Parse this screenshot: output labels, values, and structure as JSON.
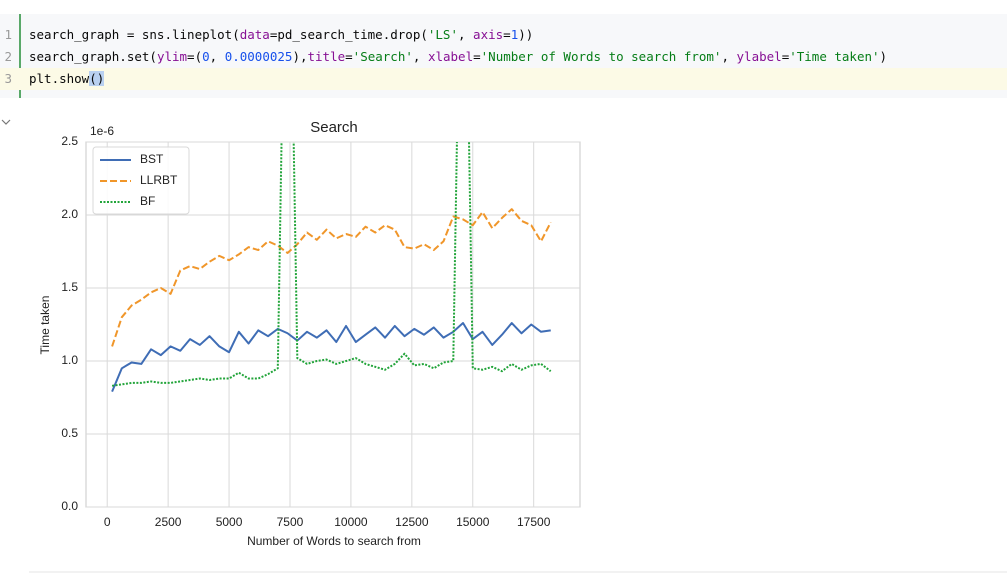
{
  "code": {
    "lines": [
      {
        "number": "1",
        "tokens": [
          {
            "text": "search_graph = sns.lineplot(",
            "color": "#080808"
          },
          {
            "text": "data",
            "color": "#871094"
          },
          {
            "text": "=pd_search_time.drop(",
            "color": "#080808"
          },
          {
            "text": "'LS'",
            "color": "#067d17"
          },
          {
            "text": ", ",
            "color": "#080808"
          },
          {
            "text": "axis",
            "color": "#871094"
          },
          {
            "text": "=",
            "color": "#080808"
          },
          {
            "text": "1",
            "color": "#1750eb"
          },
          {
            "text": "))",
            "color": "#080808"
          }
        ]
      },
      {
        "number": "2",
        "tokens": [
          {
            "text": "search_graph.set(",
            "color": "#080808"
          },
          {
            "text": "ylim",
            "color": "#871094"
          },
          {
            "text": "=(",
            "color": "#080808"
          },
          {
            "text": "0",
            "color": "#1750eb"
          },
          {
            "text": ", ",
            "color": "#080808"
          },
          {
            "text": "0.0000025",
            "color": "#1750eb"
          },
          {
            "text": "),",
            "color": "#080808"
          },
          {
            "text": "title",
            "color": "#871094"
          },
          {
            "text": "=",
            "color": "#080808"
          },
          {
            "text": "'Search'",
            "color": "#067d17"
          },
          {
            "text": ", ",
            "color": "#080808"
          },
          {
            "text": "xlabel",
            "color": "#871094"
          },
          {
            "text": "=",
            "color": "#080808"
          },
          {
            "text": "'Number of Words to search from'",
            "color": "#067d17"
          },
          {
            "text": ", ",
            "color": "#080808"
          },
          {
            "text": "ylabel",
            "color": "#871094"
          },
          {
            "text": "=",
            "color": "#080808"
          },
          {
            "text": "'Time taken'",
            "color": "#067d17"
          },
          {
            "text": ")",
            "color": "#080808"
          }
        ]
      },
      {
        "number": "3",
        "current": true,
        "tokens": [
          {
            "text": "plt.show",
            "color": "#080808"
          },
          {
            "text": "()",
            "color": "#080808",
            "highlight": true
          }
        ]
      }
    ]
  },
  "chart_data": {
    "type": "line",
    "title": "Search",
    "xlabel": "Number of Words to search from",
    "ylabel": "Time taken",
    "y_offset_label": "1e-6",
    "x": [
      200,
      600,
      1000,
      1400,
      1800,
      2200,
      2600,
      3000,
      3400,
      3800,
      4200,
      4600,
      5000,
      5400,
      5800,
      6200,
      6600,
      7000,
      7400,
      7800,
      8200,
      8600,
      9000,
      9400,
      9800,
      10200,
      10600,
      11000,
      11400,
      11800,
      12200,
      12600,
      13000,
      13400,
      13800,
      14200,
      14600,
      15000,
      15400,
      15800,
      16200,
      16600,
      17000,
      17400,
      17800,
      18200
    ],
    "series": [
      {
        "name": "BST",
        "color": "#3f6db5",
        "dash": "solid",
        "values": [
          0.79,
          0.95,
          0.99,
          0.98,
          1.08,
          1.04,
          1.1,
          1.07,
          1.15,
          1.11,
          1.17,
          1.1,
          1.06,
          1.2,
          1.12,
          1.21,
          1.17,
          1.22,
          1.19,
          1.14,
          1.2,
          1.16,
          1.21,
          1.13,
          1.24,
          1.13,
          1.18,
          1.23,
          1.16,
          1.24,
          1.17,
          1.22,
          1.18,
          1.23,
          1.16,
          1.2,
          1.26,
          1.15,
          1.2,
          1.11,
          1.18,
          1.26,
          1.19,
          1.25,
          1.2,
          1.21
        ]
      },
      {
        "name": "LLRBT",
        "color": "#f0962a",
        "dash": "dashed",
        "values": [
          1.1,
          1.3,
          1.38,
          1.42,
          1.47,
          1.5,
          1.46,
          1.62,
          1.65,
          1.63,
          1.68,
          1.72,
          1.69,
          1.73,
          1.78,
          1.76,
          1.82,
          1.79,
          1.74,
          1.8,
          1.88,
          1.83,
          1.9,
          1.84,
          1.87,
          1.85,
          1.92,
          1.88,
          1.93,
          1.9,
          1.78,
          1.77,
          1.8,
          1.76,
          1.82,
          1.99,
          1.97,
          1.93,
          2.02,
          1.91,
          1.98,
          2.04,
          1.96,
          1.93,
          1.82,
          1.95
        ]
      },
      {
        "name": "BF",
        "color": "#22a43a",
        "dash": "dotted",
        "values": [
          0.83,
          0.84,
          0.85,
          0.85,
          0.86,
          0.85,
          0.85,
          0.86,
          0.87,
          0.88,
          0.87,
          0.88,
          0.88,
          0.92,
          0.88,
          0.88,
          0.91,
          0.95,
          5.0,
          1.02,
          0.98,
          1.0,
          1.01,
          0.98,
          1.0,
          1.02,
          0.98,
          0.96,
          0.94,
          0.98,
          1.05,
          0.97,
          0.98,
          0.95,
          0.99,
          1.0,
          5.0,
          0.95,
          0.94,
          0.96,
          0.93,
          0.98,
          0.94,
          0.97,
          0.98,
          0.93
        ]
      }
    ],
    "xlim": [
      -870,
      19400
    ],
    "ylim": [
      0,
      2.5
    ],
    "xticks": [
      0,
      2500,
      5000,
      7500,
      10000,
      12500,
      15000,
      17500
    ],
    "yticks": [
      {
        "value": 0,
        "label": "0.0"
      },
      0.5,
      {
        "value": 1,
        "label": "1.0"
      },
      1.5,
      {
        "value": 2,
        "label": "2.0"
      },
      2.5
    ],
    "grid": true,
    "legend": "upper-left"
  }
}
